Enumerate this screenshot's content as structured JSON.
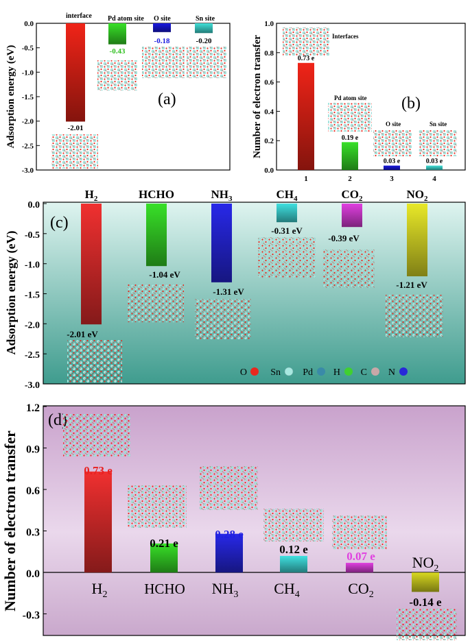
{
  "legend": {
    "elements": [
      {
        "symbol": "O",
        "color": "#e8281e"
      },
      {
        "symbol": "Sn",
        "color": "#a8e8e0"
      },
      {
        "symbol": "Pd",
        "color": "#3a8aa8"
      },
      {
        "symbol": "H",
        "color": "#40d030"
      },
      {
        "symbol": "C",
        "color": "#c8a8a8"
      },
      {
        "symbol": "N",
        "color": "#2828d8"
      }
    ]
  },
  "chart_data": [
    {
      "type": "bar",
      "panel": "(a)",
      "ylabel": "Adsorption energy (eV)",
      "ylim": [
        -3.0,
        0.0
      ],
      "yticks": [
        "0.0",
        "-0.5",
        "-1.0",
        "-1.5",
        "-2.0",
        "-2.5",
        "-3.0"
      ],
      "categories": [
        "interface",
        "Pd atom site",
        "O site",
        "Sn site"
      ],
      "values": [
        -2.01,
        -0.43,
        -0.18,
        -0.2
      ],
      "value_labels": [
        "-2.01",
        "-0.43",
        "-0.18",
        "-0.20"
      ],
      "colors": [
        "#f02418",
        "#38e028",
        "#1818e0",
        "#40e0d8"
      ],
      "label_colors": [
        "#e02010",
        "#30c020",
        "#1818e0",
        "#000000"
      ]
    },
    {
      "type": "bar",
      "panel": "(b)",
      "ylabel": "Number of electron transfer",
      "ylim": [
        0.0,
        1.0
      ],
      "yticks": [
        "0.0",
        "0.2",
        "0.4",
        "0.6",
        "0.8",
        "1.0"
      ],
      "categories": [
        "1",
        "2",
        "3",
        "4"
      ],
      "site_labels": [
        "Interfaces",
        "Pd atom site",
        "O site",
        "Sn site"
      ],
      "values": [
        0.73,
        0.19,
        0.03,
        0.03
      ],
      "value_labels": [
        "0.73 e",
        "0.19 e",
        "0.03 e",
        "0.03 e"
      ],
      "colors": [
        "#f02418",
        "#38e028",
        "#1818e0",
        "#40e0d8"
      ]
    },
    {
      "type": "bar",
      "panel": "(c)",
      "ylabel": "Adsorption energy (eV)",
      "ylim": [
        -3.0,
        0.0
      ],
      "yticks": [
        "0.0",
        "-0.5",
        "-1.0",
        "-1.5",
        "-2.0",
        "-2.5",
        "-3.0"
      ],
      "categories": [
        "H2",
        "HCHO",
        "NH3",
        "CH4",
        "CO2",
        "NO2"
      ],
      "values": [
        -2.01,
        -1.04,
        -1.31,
        -0.31,
        -0.39,
        -1.21
      ],
      "value_labels": [
        "-2.01 eV",
        "-1.04 eV",
        "-1.31 eV",
        "-0.31 eV",
        "-0.39 eV",
        "-1.21 eV"
      ],
      "colors": [
        "#f03030",
        "#38e028",
        "#2828e8",
        "#40e0e0",
        "#e040e0",
        "#e8e828"
      ]
    },
    {
      "type": "bar",
      "panel": "(d)",
      "ylabel": "Number of electron transfer",
      "ylim": [
        -0.45,
        1.2
      ],
      "yticks": [
        "1.2",
        "0.9",
        "0.6",
        "0.3",
        "0.0",
        "-0.3"
      ],
      "categories": [
        "H2",
        "HCHO",
        "NH3",
        "CH4",
        "CO2",
        "NO2"
      ],
      "values": [
        0.73,
        0.21,
        0.28,
        0.12,
        0.07,
        -0.14
      ],
      "value_labels": [
        "0.73 e",
        "0.21 e",
        "0.28 e",
        "0.12 e",
        "0.07 e",
        "-0.14 e"
      ],
      "label_colors": [
        "#e82020",
        "#000000",
        "#2020e0",
        "#000000",
        "#e040e0",
        "#000000"
      ],
      "colors": [
        "#f03030",
        "#38e028",
        "#2828e8",
        "#40e0e0",
        "#e040e0",
        "#d8d820"
      ]
    }
  ]
}
